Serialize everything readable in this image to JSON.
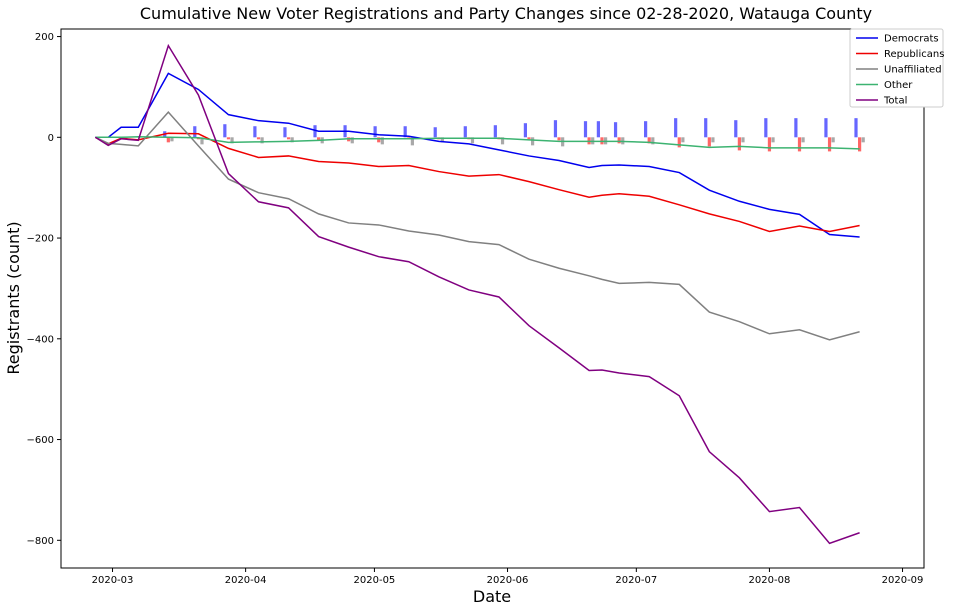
{
  "chart_data": {
    "type": "line",
    "title": "Cumulative New Voter Registrations and Party Changes since 02-28-2020, Watauga County",
    "xlabel": "Date",
    "ylabel": "Registrants (count)",
    "xlim": [
      "2020-02-18",
      "2020-09-06"
    ],
    "ylim": [
      -855,
      215
    ],
    "x_ticks": [
      "2020-03-01",
      "2020-04-01",
      "2020-05-01",
      "2020-06-01",
      "2020-07-01",
      "2020-08-01",
      "2020-09-01"
    ],
    "x_tick_labels": [
      "2020-03",
      "2020-04",
      "2020-05",
      "2020-06",
      "2020-07",
      "2020-08",
      "2020-09"
    ],
    "y_ticks": [
      200,
      0,
      -200,
      -400,
      -600,
      -800
    ],
    "y_tick_labels": [
      "200",
      "0",
      "−200",
      "−400",
      "−600",
      "−800"
    ],
    "legend_position": "top-right",
    "series": [
      {
        "name": "Democrats",
        "color": "#0000ee",
        "x": [
          "2020-02-26",
          "2020-02-29",
          "2020-03-03",
          "2020-03-07",
          "2020-03-14",
          "2020-03-21",
          "2020-03-28",
          "2020-04-04",
          "2020-04-11",
          "2020-04-18",
          "2020-04-25",
          "2020-05-02",
          "2020-05-09",
          "2020-05-16",
          "2020-05-23",
          "2020-05-30",
          "2020-06-06",
          "2020-06-13",
          "2020-06-20",
          "2020-06-23",
          "2020-06-27",
          "2020-07-04",
          "2020-07-11",
          "2020-07-18",
          "2020-07-25",
          "2020-08-01",
          "2020-08-08",
          "2020-08-15",
          "2020-08-22"
        ],
        "y": [
          0,
          0,
          20,
          20,
          127,
          95,
          45,
          33,
          28,
          12,
          12,
          5,
          2,
          -8,
          -13,
          -25,
          -37,
          -46,
          -60,
          -56,
          -55,
          -58,
          -70,
          -105,
          -127,
          -143,
          -153,
          -193,
          -198
        ]
      },
      {
        "name": "Republicans",
        "color": "#ee0000",
        "x": [
          "2020-02-26",
          "2020-02-29",
          "2020-03-03",
          "2020-03-07",
          "2020-03-14",
          "2020-03-21",
          "2020-03-28",
          "2020-04-04",
          "2020-04-11",
          "2020-04-18",
          "2020-04-25",
          "2020-05-02",
          "2020-05-09",
          "2020-05-16",
          "2020-05-23",
          "2020-05-30",
          "2020-06-06",
          "2020-06-13",
          "2020-06-20",
          "2020-06-23",
          "2020-06-27",
          "2020-07-04",
          "2020-07-11",
          "2020-07-18",
          "2020-07-25",
          "2020-08-01",
          "2020-08-08",
          "2020-08-15",
          "2020-08-22"
        ],
        "y": [
          0,
          -13,
          -2,
          -5,
          8,
          7,
          -22,
          -40,
          -37,
          -48,
          -51,
          -58,
          -56,
          -68,
          -77,
          -74,
          -88,
          -104,
          -119,
          -115,
          -112,
          -117,
          -134,
          -152,
          -167,
          -187,
          -176,
          -187,
          -175
        ]
      },
      {
        "name": "Unaffiliated",
        "color": "#808080",
        "x": [
          "2020-02-26",
          "2020-02-29",
          "2020-03-03",
          "2020-03-07",
          "2020-03-14",
          "2020-03-21",
          "2020-03-28",
          "2020-04-04",
          "2020-04-11",
          "2020-04-18",
          "2020-04-25",
          "2020-05-02",
          "2020-05-09",
          "2020-05-16",
          "2020-05-23",
          "2020-05-30",
          "2020-06-06",
          "2020-06-13",
          "2020-06-20",
          "2020-06-23",
          "2020-06-27",
          "2020-07-04",
          "2020-07-11",
          "2020-07-18",
          "2020-07-25",
          "2020-08-01",
          "2020-08-08",
          "2020-08-15",
          "2020-08-22"
        ],
        "y": [
          0,
          -12,
          -14,
          -17,
          50,
          -17,
          -83,
          -110,
          -122,
          -152,
          -170,
          -174,
          -186,
          -194,
          -207,
          -213,
          -242,
          -260,
          -275,
          -282,
          -290,
          -288,
          -292,
          -347,
          -366,
          -390,
          -382,
          -402,
          -386
        ]
      },
      {
        "name": "Other",
        "color": "#3cb371",
        "x": [
          "2020-02-26",
          "2020-02-29",
          "2020-03-03",
          "2020-03-07",
          "2020-03-14",
          "2020-03-21",
          "2020-03-28",
          "2020-04-04",
          "2020-04-11",
          "2020-04-18",
          "2020-04-25",
          "2020-05-02",
          "2020-05-09",
          "2020-05-16",
          "2020-05-23",
          "2020-05-30",
          "2020-06-06",
          "2020-06-13",
          "2020-06-20",
          "2020-06-23",
          "2020-06-27",
          "2020-07-04",
          "2020-07-11",
          "2020-07-18",
          "2020-07-25",
          "2020-08-01",
          "2020-08-08",
          "2020-08-15",
          "2020-08-22"
        ],
        "y": [
          0,
          0,
          0,
          1,
          0,
          -1,
          -10,
          -9,
          -8,
          -6,
          -3,
          -3,
          -3,
          -2,
          -2,
          -2,
          -5,
          -8,
          -8,
          -8,
          -8,
          -10,
          -15,
          -20,
          -18,
          -21,
          -21,
          -21,
          -23
        ]
      },
      {
        "name": "Total",
        "color": "#800080",
        "x": [
          "2020-02-26",
          "2020-02-29",
          "2020-03-03",
          "2020-03-07",
          "2020-03-14",
          "2020-03-21",
          "2020-03-28",
          "2020-04-04",
          "2020-04-11",
          "2020-04-18",
          "2020-04-25",
          "2020-05-02",
          "2020-05-09",
          "2020-05-16",
          "2020-05-23",
          "2020-05-30",
          "2020-06-06",
          "2020-06-13",
          "2020-06-20",
          "2020-06-23",
          "2020-06-27",
          "2020-07-04",
          "2020-07-11",
          "2020-07-18",
          "2020-07-25",
          "2020-08-01",
          "2020-08-08",
          "2020-08-15",
          "2020-08-22"
        ],
        "y": [
          0,
          -16,
          -3,
          -6,
          182,
          84,
          -72,
          -128,
          -140,
          -197,
          -218,
          -237,
          -247,
          -277,
          -303,
          -317,
          -374,
          -418,
          -463,
          -462,
          -468,
          -475,
          -513,
          -624,
          -676,
          -743,
          -735,
          -806,
          -785
        ]
      }
    ],
    "bars": {
      "x": [
        "2020-03-14",
        "2020-03-21",
        "2020-03-28",
        "2020-04-04",
        "2020-04-11",
        "2020-04-18",
        "2020-04-25",
        "2020-05-02",
        "2020-05-09",
        "2020-05-16",
        "2020-05-23",
        "2020-05-30",
        "2020-06-06",
        "2020-06-13",
        "2020-06-20",
        "2020-06-23",
        "2020-06-27",
        "2020-07-04",
        "2020-07-11",
        "2020-07-18",
        "2020-07-25",
        "2020-08-01",
        "2020-08-08",
        "2020-08-15",
        "2020-08-22"
      ],
      "groups": [
        {
          "color": "#6666ff",
          "values": [
            12,
            22,
            26,
            22,
            20,
            24,
            24,
            22,
            22,
            20,
            22,
            24,
            28,
            34,
            32,
            32,
            30,
            32,
            38,
            38,
            34,
            38,
            38,
            38,
            38
          ]
        },
        {
          "color": "#ff6666",
          "values": [
            -10,
            -4,
            -4,
            -4,
            -4,
            -6,
            -8,
            -10,
            -4,
            -4,
            -4,
            -4,
            -4,
            -6,
            -14,
            -14,
            -12,
            -12,
            -20,
            -18,
            -26,
            -28,
            -28,
            -28,
            -28
          ]
        },
        {
          "color": "#a9a9a9",
          "values": [
            -8,
            -14,
            -12,
            -12,
            -10,
            -12,
            -12,
            -14,
            -16,
            -10,
            -12,
            -14,
            -16,
            -18,
            -14,
            -14,
            -14,
            -14,
            -10,
            -10,
            -10,
            -10,
            -10,
            -10,
            -10
          ]
        }
      ]
    }
  }
}
